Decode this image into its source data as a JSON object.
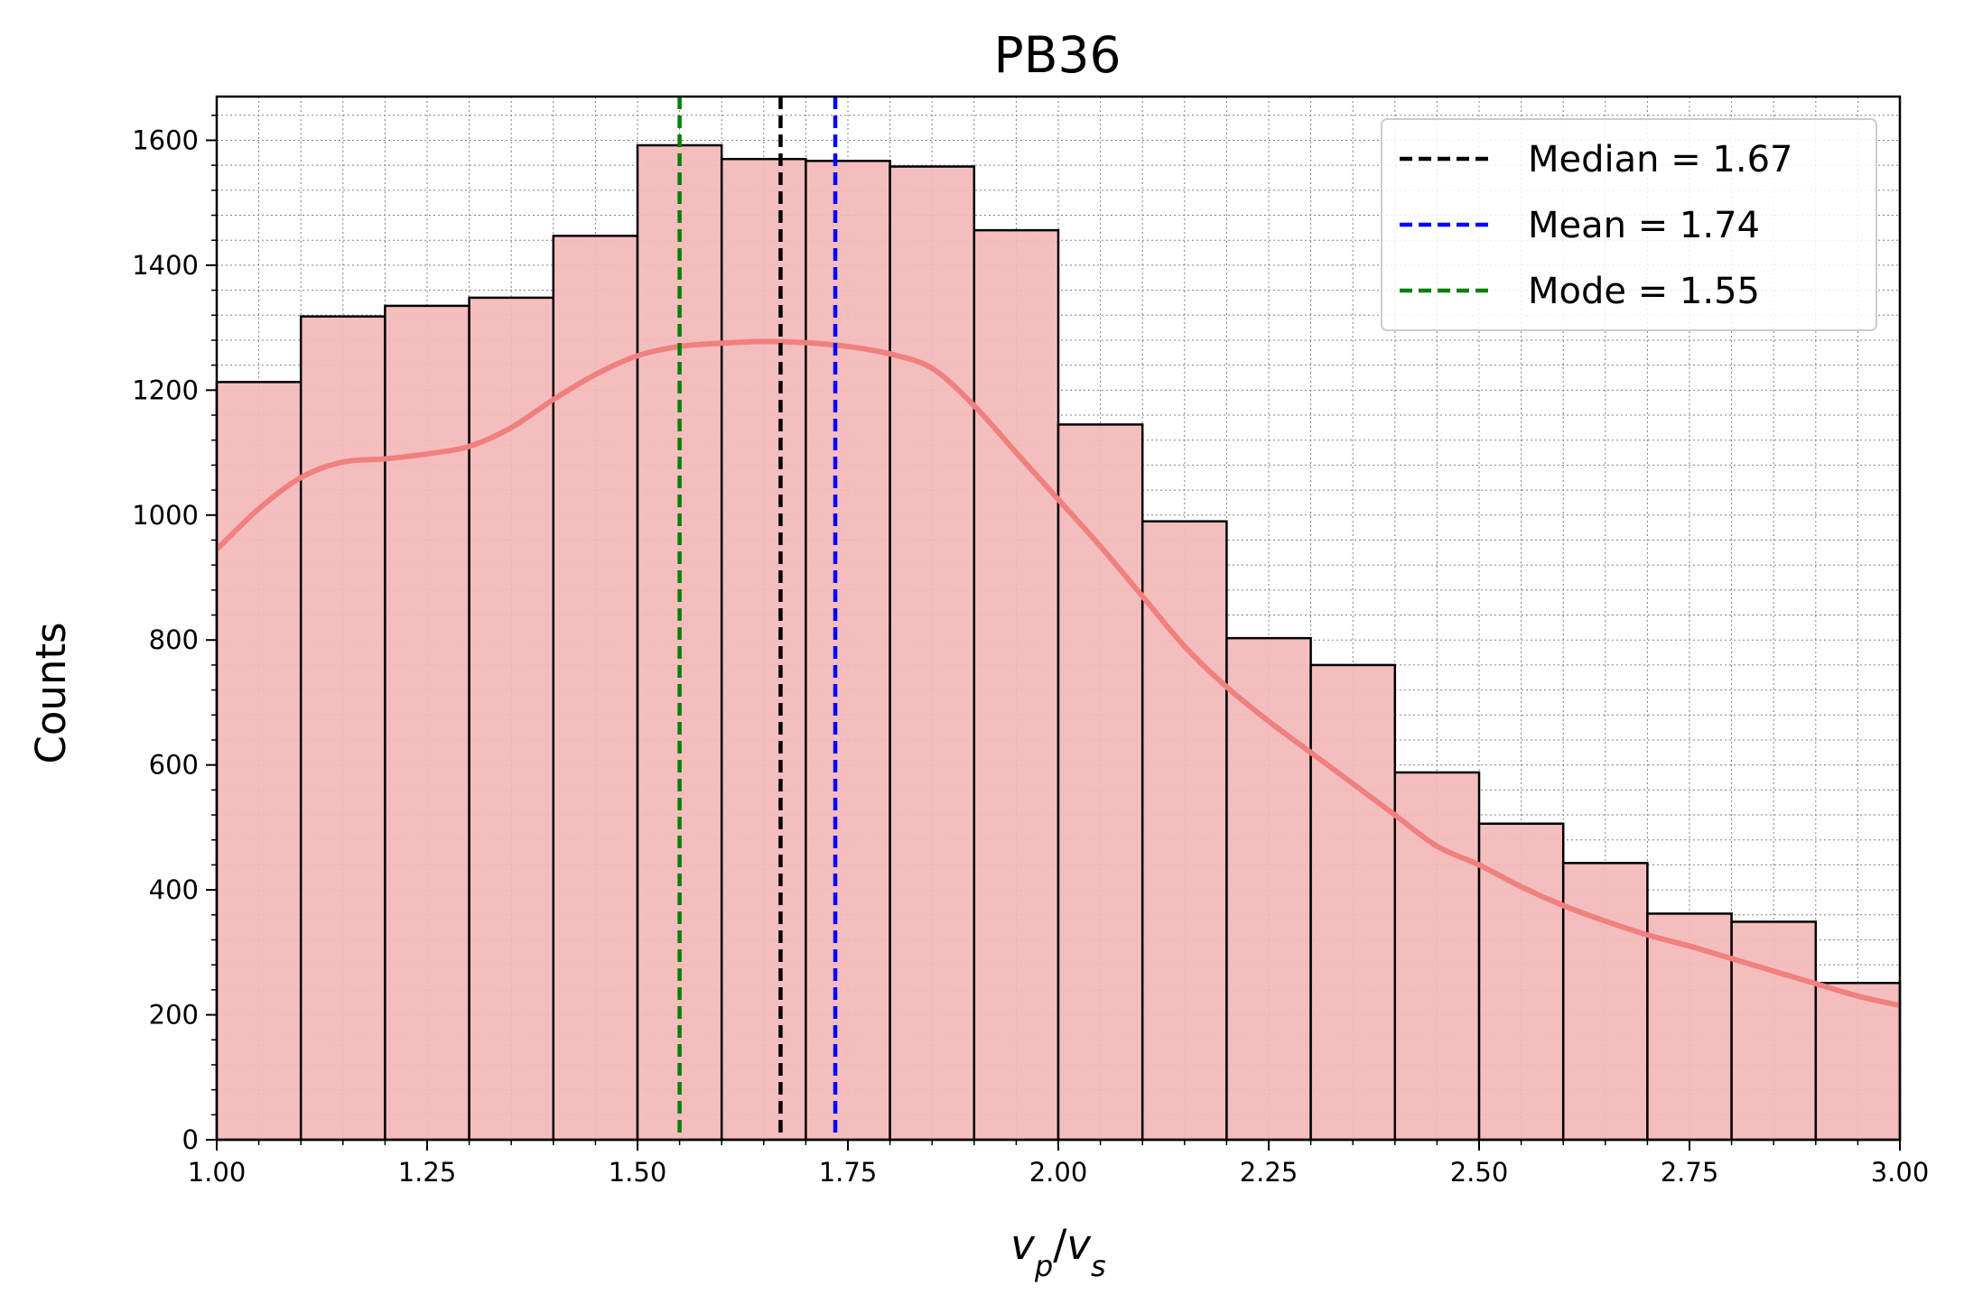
{
  "chart_data": {
    "type": "bar",
    "title": "PB36",
    "xlabel": "v_p/v_s",
    "ylabel": "Counts",
    "xlim": [
      1.0,
      3.0
    ],
    "ylim": [
      0,
      1670
    ],
    "bin_edges": [
      1.0,
      1.1,
      1.2,
      1.3,
      1.4,
      1.5,
      1.6,
      1.7,
      1.8,
      1.9,
      2.0,
      2.1,
      2.2,
      2.3,
      2.4,
      2.5,
      2.6,
      2.7,
      2.8,
      2.9,
      3.0
    ],
    "values": [
      1213,
      1318,
      1335,
      1348,
      1447,
      1592,
      1570,
      1567,
      1558,
      1456,
      1145,
      990,
      803,
      760,
      588,
      506,
      443,
      362,
      349,
      251
    ],
    "bar_color": "#f4b8b8",
    "edge_color": "#000000",
    "kde": {
      "color": "#f08080",
      "x": [
        1.0,
        1.05,
        1.1,
        1.15,
        1.2,
        1.25,
        1.3,
        1.35,
        1.4,
        1.45,
        1.5,
        1.55,
        1.6,
        1.65,
        1.7,
        1.75,
        1.8,
        1.85,
        1.9,
        1.95,
        2.0,
        2.05,
        2.1,
        2.15,
        2.2,
        2.25,
        2.3,
        2.35,
        2.4,
        2.45,
        2.5,
        2.55,
        2.6,
        2.65,
        2.7,
        2.75,
        2.8,
        2.85,
        2.9,
        2.95,
        3.0
      ],
      "y": [
        945,
        1010,
        1060,
        1085,
        1090,
        1098,
        1110,
        1140,
        1185,
        1225,
        1255,
        1270,
        1275,
        1278,
        1276,
        1270,
        1258,
        1235,
        1175,
        1100,
        1025,
        950,
        870,
        790,
        725,
        670,
        620,
        570,
        520,
        470,
        440,
        405,
        375,
        350,
        328,
        310,
        290,
        270,
        250,
        230,
        215
      ]
    },
    "vlines": [
      {
        "label": "Median = 1.67",
        "x": 1.67,
        "color": "#000000"
      },
      {
        "label": "Mean = 1.74",
        "x": 1.735,
        "color": "#0000ff"
      },
      {
        "label": "Mode = 1.55",
        "x": 1.55,
        "color": "#008000"
      }
    ],
    "x_ticks": [
      "1.00",
      "1.25",
      "1.50",
      "1.75",
      "2.00",
      "2.25",
      "2.50",
      "2.75",
      "3.00"
    ],
    "y_ticks": [
      "0",
      "200",
      "400",
      "600",
      "800",
      "1000",
      "1200",
      "1400",
      "1600"
    ],
    "grid": true,
    "legend_position": "top-right"
  }
}
